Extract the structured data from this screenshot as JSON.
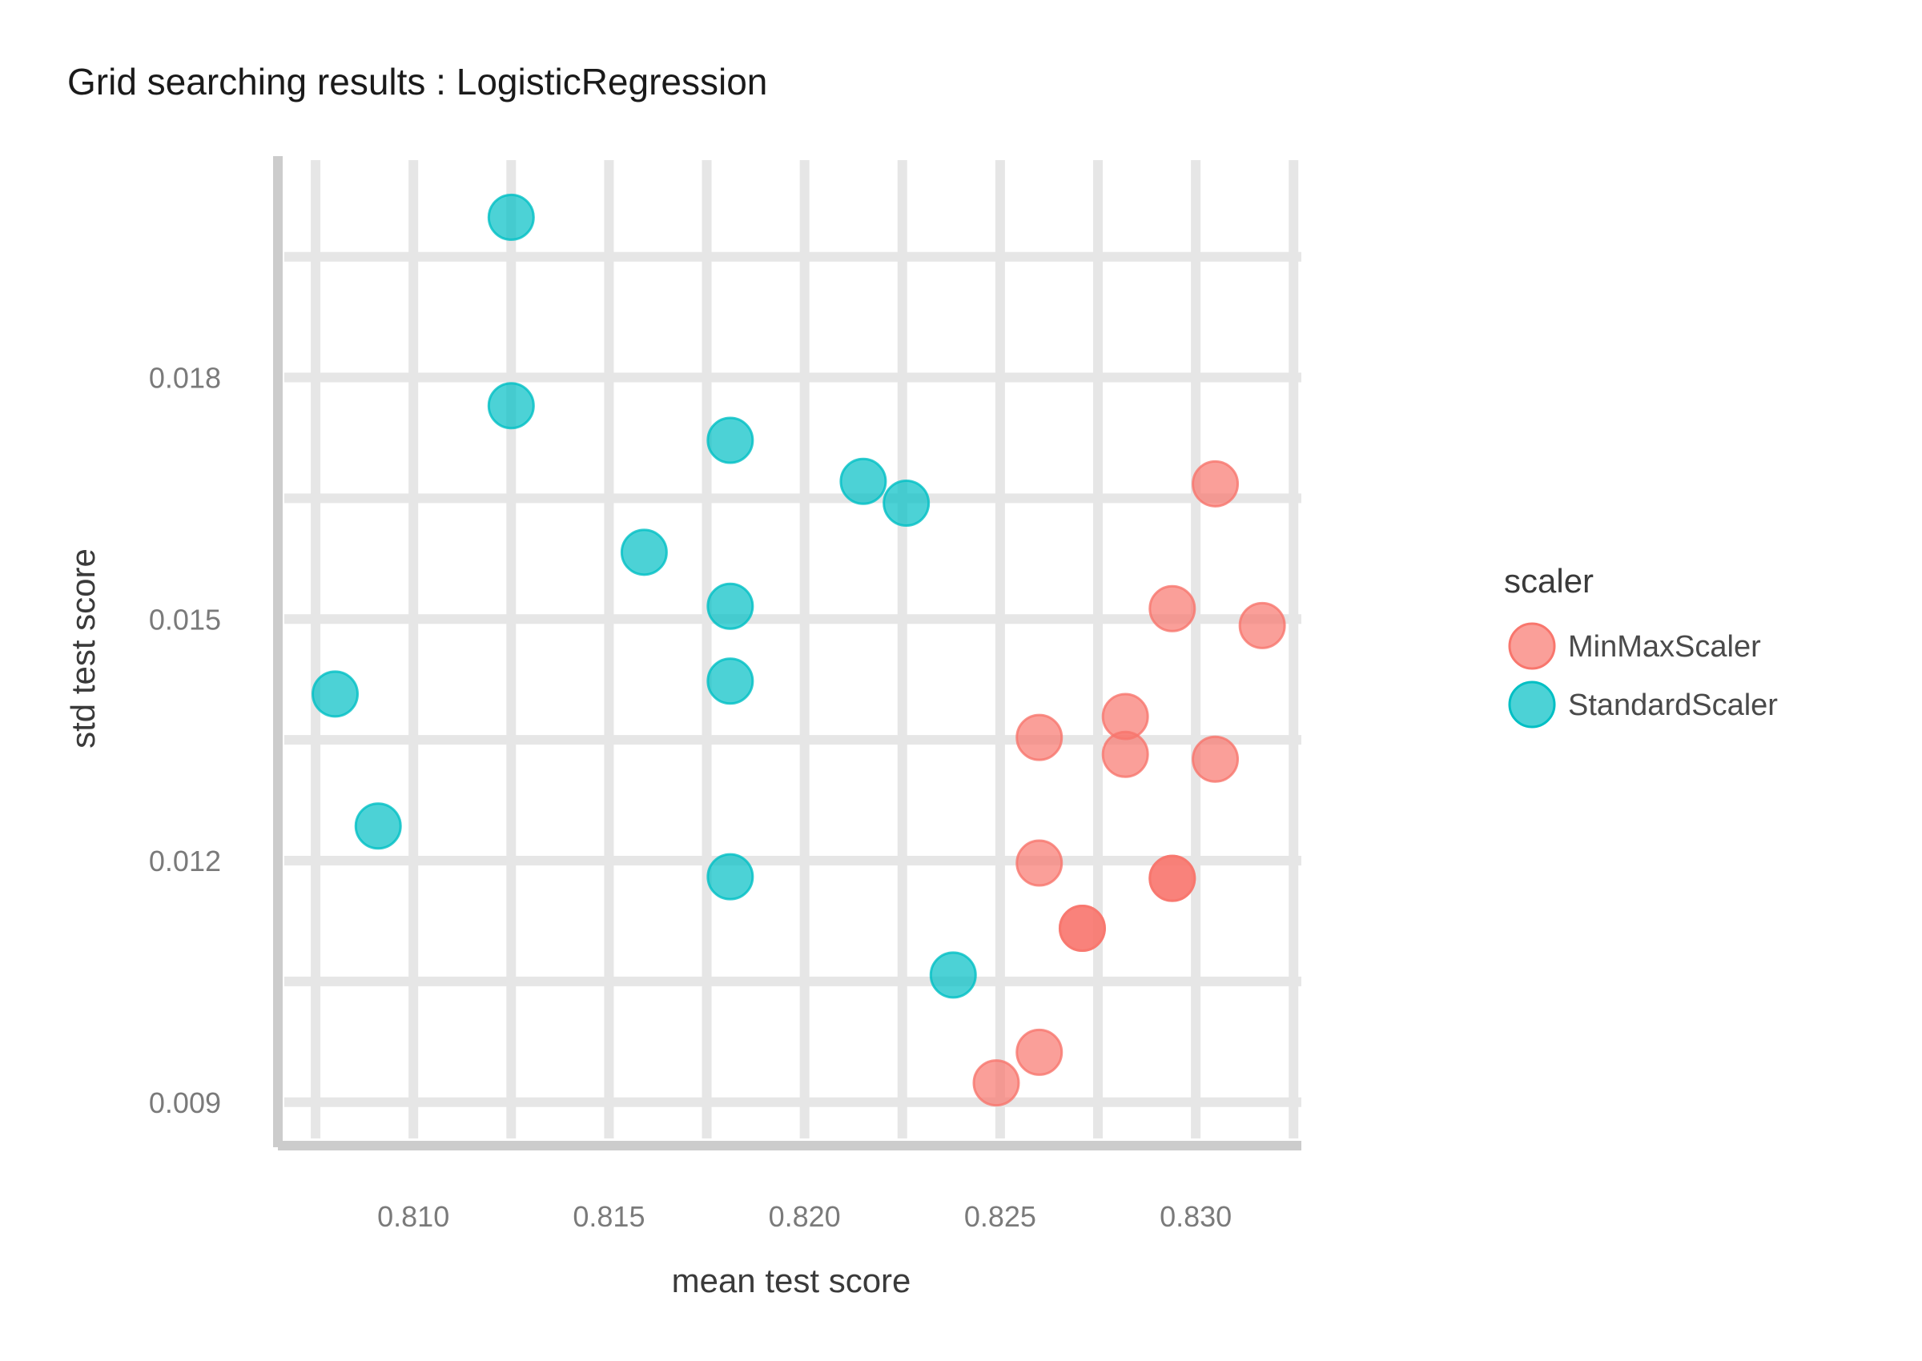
{
  "chart_data": {
    "type": "scatter",
    "title": "Grid searching results :  LogisticRegression",
    "xlabel": "mean test score",
    "ylabel": "std test score",
    "xlim": [
      0.8067,
      0.8327
    ],
    "ylim": [
      0.0086,
      0.0207
    ],
    "x_ticks": [
      0.81,
      0.815,
      0.82,
      0.825,
      0.83
    ],
    "x_tick_labels": [
      "0.810",
      "0.815",
      "0.820",
      "0.825",
      "0.830"
    ],
    "y_ticks": [
      0.009,
      0.012,
      0.015,
      0.018
    ],
    "y_tick_labels": [
      "0.009",
      "0.012",
      "0.015",
      "0.018"
    ],
    "grid": true,
    "legend": {
      "title": "scaler",
      "placement": "right"
    },
    "series": [
      {
        "name": "MinMaxScaler",
        "color": "#F8766D",
        "points": [
          [
            0.8305,
            0.01668
          ],
          [
            0.8294,
            0.01513
          ],
          [
            0.8317,
            0.01492
          ],
          [
            0.8282,
            0.01379
          ],
          [
            0.8282,
            0.01332
          ],
          [
            0.8305,
            0.01326
          ],
          [
            0.826,
            0.01353
          ],
          [
            0.826,
            0.01197
          ],
          [
            0.8294,
            0.01178
          ],
          [
            0.8294,
            0.01178
          ],
          [
            0.8271,
            0.01116
          ],
          [
            0.8271,
            0.01116
          ],
          [
            0.826,
            0.00962
          ],
          [
            0.8249,
            0.00924
          ]
        ]
      },
      {
        "name": "StandardScaler",
        "color": "#00BFC4",
        "points": [
          [
            0.8125,
            0.01999
          ],
          [
            0.8125,
            0.01765
          ],
          [
            0.8181,
            0.01722
          ],
          [
            0.8215,
            0.01671
          ],
          [
            0.8226,
            0.01644
          ],
          [
            0.8159,
            0.01583
          ],
          [
            0.8181,
            0.01516
          ],
          [
            0.8181,
            0.01423
          ],
          [
            0.808,
            0.01407
          ],
          [
            0.8091,
            0.01243
          ],
          [
            0.8181,
            0.0118
          ],
          [
            0.8238,
            0.01058
          ]
        ]
      }
    ]
  }
}
